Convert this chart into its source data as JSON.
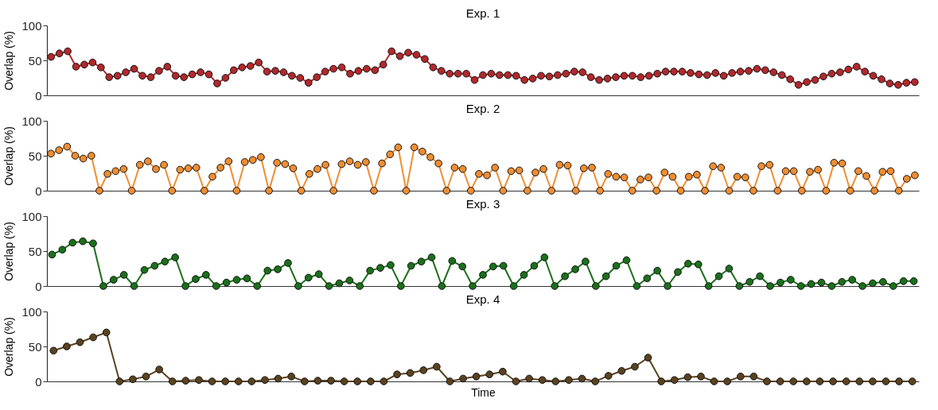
{
  "chart_data": [
    {
      "type": "line",
      "title": "Exp. 1",
      "ylabel": "Overlap (%)",
      "marker": "circle",
      "line_style": "solid",
      "tick_labels": "y",
      "ylim": [
        0,
        100
      ],
      "yticks": [
        0,
        50,
        100
      ],
      "categories": [
        null,
        null,
        null,
        null,
        null,
        null,
        null,
        null,
        null,
        null,
        null,
        null,
        null,
        null,
        null,
        null,
        null,
        null,
        null,
        null,
        null,
        null,
        null,
        null,
        null,
        null,
        null,
        null,
        null,
        null,
        null,
        null,
        null,
        null,
        null,
        null,
        null,
        null,
        null,
        null,
        null,
        null,
        null,
        null,
        null,
        null,
        null,
        null,
        null,
        null,
        null,
        null,
        null,
        null,
        null,
        null,
        null,
        null,
        null,
        null,
        null,
        null,
        null,
        null,
        null,
        null,
        null,
        null,
        null,
        null,
        null,
        null,
        null,
        null,
        null,
        null,
        null,
        null,
        null,
        null,
        null,
        null,
        null,
        null,
        null,
        null,
        null,
        null,
        null,
        null,
        null,
        null,
        null,
        null,
        null,
        null,
        null,
        null,
        null,
        null,
        null,
        null,
        null,
        null,
        null
      ],
      "series": [
        {
          "color": "#b0292c",
          "values": [
            55,
            60,
            63,
            41,
            44,
            47,
            40,
            26,
            28,
            33,
            38,
            28,
            26,
            35,
            41,
            28,
            26,
            30,
            33,
            30,
            17,
            25,
            36,
            40,
            42,
            47,
            34,
            35,
            33,
            28,
            25,
            18,
            26,
            34,
            38,
            40,
            31,
            35,
            38,
            36,
            44,
            63,
            56,
            61,
            58,
            52,
            40,
            35,
            31,
            31,
            31,
            22,
            29,
            31,
            29,
            29,
            28,
            22,
            24,
            28,
            27,
            29,
            31,
            34,
            33,
            26,
            22,
            24,
            26,
            28,
            28,
            26,
            28,
            31,
            34,
            34,
            34,
            32,
            30,
            29,
            32,
            28,
            32,
            34,
            35,
            38,
            36,
            33,
            29,
            23,
            15,
            19,
            22,
            27,
            31,
            33,
            37,
            41,
            34,
            28,
            23,
            17,
            15,
            18,
            19
          ]
        }
      ]
    },
    {
      "type": "line",
      "title": "Exp. 2",
      "ylabel": "Overlap (%)",
      "marker": "circle",
      "line_style": "solid",
      "tick_labels": "y",
      "ylim": [
        0,
        100
      ],
      "yticks": [
        0,
        50,
        100
      ],
      "categories": [
        null,
        null,
        null,
        null,
        null,
        null,
        null,
        null,
        null,
        null,
        null,
        null,
        null,
        null,
        null,
        null,
        null,
        null,
        null,
        null,
        null,
        null,
        null,
        null,
        null,
        null,
        null,
        null,
        null,
        null,
        null,
        null,
        null,
        null,
        null,
        null,
        null,
        null,
        null,
        null,
        null,
        null,
        null,
        null,
        null,
        null,
        null,
        null,
        null,
        null,
        null,
        null,
        null,
        null,
        null,
        null,
        null,
        null,
        null,
        null,
        null,
        null,
        null,
        null,
        null,
        null,
        null,
        null,
        null,
        null,
        null,
        null,
        null,
        null,
        null,
        null,
        null,
        null,
        null,
        null,
        null,
        null,
        null,
        null,
        null,
        null,
        null,
        null,
        null,
        null,
        null,
        null,
        null,
        null,
        null,
        null,
        null,
        null,
        null,
        null,
        null,
        null,
        null,
        null,
        null,
        null,
        null,
        null
      ],
      "series": [
        {
          "color": "#ef8d32",
          "values": [
            53,
            58,
            63,
            50,
            46,
            50,
            0,
            24,
            28,
            31,
            0,
            37,
            42,
            31,
            37,
            0,
            30,
            32,
            33,
            0,
            20,
            33,
            42,
            0,
            41,
            44,
            48,
            0,
            40,
            38,
            32,
            0,
            24,
            31,
            37,
            0,
            38,
            42,
            37,
            41,
            0,
            39,
            52,
            62,
            0,
            62,
            56,
            48,
            39,
            0,
            33,
            31,
            0,
            24,
            22,
            33,
            0,
            28,
            29,
            0,
            26,
            31,
            0,
            37,
            36,
            0,
            32,
            33,
            0,
            24,
            20,
            19,
            0,
            16,
            19,
            0,
            26,
            20,
            0,
            20,
            23,
            0,
            35,
            33,
            0,
            20,
            19,
            0,
            35,
            37,
            0,
            28,
            28,
            0,
            27,
            30,
            0,
            40,
            39,
            0,
            28,
            21,
            0,
            27,
            28,
            0,
            17,
            22
          ]
        }
      ]
    },
    {
      "type": "line",
      "title": "Exp. 3",
      "ylabel": "Overlap (%)",
      "marker": "circle",
      "line_style": "solid",
      "tick_labels": "y",
      "ylim": [
        0,
        100
      ],
      "yticks": [
        0,
        50,
        100
      ],
      "categories": [
        null,
        null,
        null,
        null,
        null,
        null,
        null,
        null,
        null,
        null,
        null,
        null,
        null,
        null,
        null,
        null,
        null,
        null,
        null,
        null,
        null,
        null,
        null,
        null,
        null,
        null,
        null,
        null,
        null,
        null,
        null,
        null,
        null,
        null,
        null,
        null,
        null,
        null,
        null,
        null,
        null,
        null,
        null,
        null,
        null,
        null,
        null,
        null,
        null,
        null,
        null,
        null,
        null,
        null,
        null,
        null,
        null,
        null,
        null,
        null,
        null,
        null,
        null,
        null,
        null,
        null,
        null,
        null,
        null,
        null,
        null,
        null,
        null,
        null,
        null,
        null,
        null,
        null,
        null,
        null,
        null,
        null,
        null,
        null,
        null
      ],
      "series": [
        {
          "color": "#1b701b",
          "values": [
            45,
            52,
            62,
            64,
            61,
            0,
            9,
            16,
            0,
            23,
            29,
            35,
            41,
            0,
            10,
            16,
            0,
            5,
            9,
            11,
            0,
            22,
            24,
            33,
            0,
            12,
            17,
            0,
            4,
            8,
            0,
            22,
            26,
            30,
            0,
            29,
            35,
            41,
            0,
            36,
            28,
            0,
            16,
            28,
            29,
            0,
            16,
            29,
            41,
            0,
            14,
            24,
            35,
            0,
            14,
            29,
            37,
            0,
            11,
            22,
            0,
            20,
            32,
            31,
            0,
            14,
            25,
            0,
            6,
            14,
            0,
            5,
            9,
            0,
            3,
            5,
            0,
            6,
            9,
            0,
            4,
            6,
            0,
            7,
            7
          ]
        }
      ]
    },
    {
      "type": "line",
      "title": "Exp. 4",
      "ylabel": "Overlap (%)",
      "xlabel": "Time",
      "marker": "circle",
      "line_style": "solid",
      "tick_labels": "y",
      "ylim": [
        0,
        100
      ],
      "yticks": [
        0,
        50,
        100
      ],
      "categories": [
        null,
        null,
        null,
        null,
        null,
        null,
        null,
        null,
        null,
        null,
        null,
        null,
        null,
        null,
        null,
        null,
        null,
        null,
        null,
        null,
        null,
        null,
        null,
        null,
        null,
        null,
        null,
        null,
        null,
        null,
        null,
        null,
        null,
        null,
        null,
        null,
        null,
        null,
        null,
        null,
        null,
        null,
        null,
        null,
        null,
        null,
        null,
        null,
        null,
        null,
        null,
        null,
        null,
        null,
        null,
        null,
        null,
        null,
        null,
        null,
        null,
        null,
        null,
        null,
        null,
        null
      ],
      "series": [
        {
          "color": "#5a4220",
          "values": [
            44,
            50,
            56,
            63,
            70,
            0,
            3,
            7,
            17,
            0,
            1,
            2,
            0,
            0,
            0,
            0,
            2,
            4,
            7,
            0,
            1,
            1,
            0,
            0,
            0,
            0,
            10,
            12,
            16,
            21,
            0,
            4,
            7,
            10,
            14,
            0,
            4,
            2,
            0,
            2,
            4,
            0,
            8,
            15,
            21,
            34,
            0,
            2,
            6,
            7,
            0,
            0,
            7,
            7,
            0,
            0,
            0,
            0,
            0,
            0,
            0,
            0,
            0,
            0,
            0,
            0
          ]
        }
      ]
    }
  ]
}
